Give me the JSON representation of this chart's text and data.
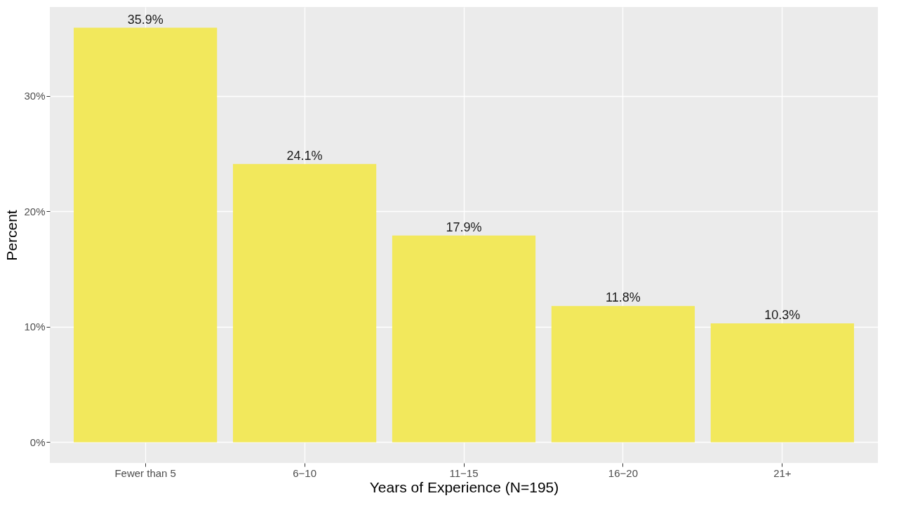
{
  "chart_data": {
    "type": "bar",
    "xlabel": "Years of Experience (N=195)",
    "ylabel": "Percent",
    "categories": [
      "Fewer than 5",
      "6−10",
      "11−15",
      "16−20",
      "21+"
    ],
    "values": [
      35.9,
      24.1,
      17.9,
      11.8,
      10.3
    ],
    "value_labels": [
      "35.9%",
      "24.1%",
      "17.9%",
      "11.8%",
      "10.3%"
    ],
    "color": "#f2e85c",
    "ylim": [
      -1.8,
      37.7
    ],
    "yticks": [
      {
        "value": 0,
        "label": "0%"
      },
      {
        "value": 10,
        "label": "10%"
      },
      {
        "value": 20,
        "label": "20%"
      },
      {
        "value": 30,
        "label": "30%"
      }
    ],
    "grid": true
  }
}
